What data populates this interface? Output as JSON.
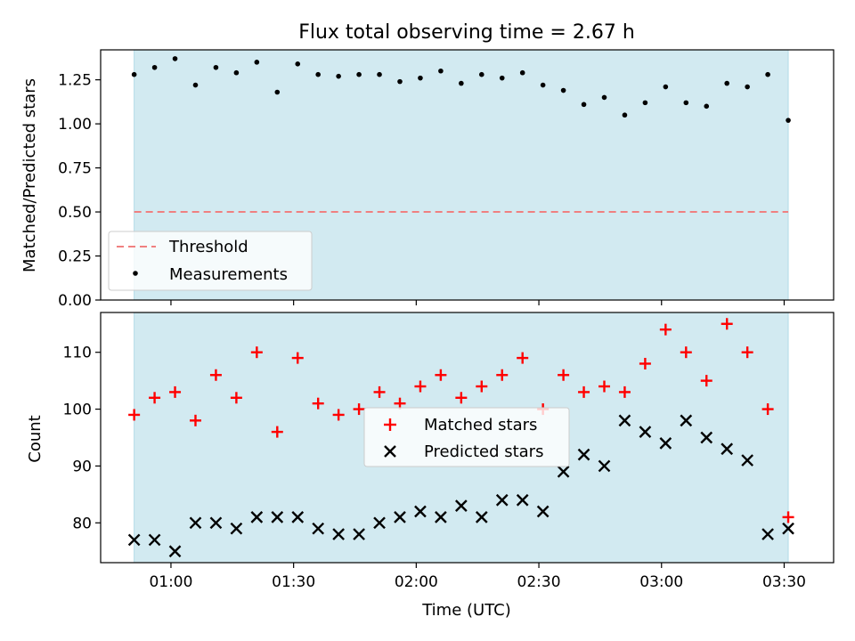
{
  "chart_data": [
    {
      "type": "scatter",
      "title": "Flux total observing time = 2.67 h",
      "xlabel": "",
      "ylabel": "Matched/Predicted stars",
      "ylim": [
        0,
        1.42
      ],
      "yticks": [
        "0.00",
        "0.25",
        "0.50",
        "0.75",
        "1.00",
        "1.25"
      ],
      "threshold": 0.5,
      "x": [
        "00:51",
        "00:56",
        "01:01",
        "01:06",
        "01:11",
        "01:16",
        "01:21",
        "01:26",
        "01:31",
        "01:36",
        "01:41",
        "01:46",
        "01:51",
        "01:56",
        "02:01",
        "02:06",
        "02:11",
        "02:16",
        "02:21",
        "02:26",
        "02:31",
        "02:36",
        "02:41",
        "02:46",
        "02:51",
        "02:56",
        "03:01",
        "03:06",
        "03:11",
        "03:16",
        "03:21",
        "03:26",
        "03:31"
      ],
      "series": [
        {
          "name": "Threshold",
          "color": "#f08080",
          "style": "dashed",
          "values": [
            0.5,
            0.5
          ]
        },
        {
          "name": "Measurements",
          "color": "#000000",
          "values": [
            1.28,
            1.32,
            1.37,
            1.22,
            1.32,
            1.29,
            1.35,
            1.18,
            1.34,
            1.28,
            1.27,
            1.28,
            1.28,
            1.24,
            1.26,
            1.3,
            1.23,
            1.28,
            1.26,
            1.29,
            1.22,
            1.19,
            1.11,
            1.15,
            1.05,
            1.12,
            1.21,
            1.12,
            1.1,
            1.23,
            1.21,
            1.28,
            1.02
          ]
        }
      ],
      "legend": "lower-left",
      "shade_color": "#add8e6"
    },
    {
      "type": "scatter",
      "title": "",
      "xlabel": "Time (UTC)",
      "ylabel": "Count",
      "ylim": [
        73,
        117
      ],
      "yticks": [
        "80",
        "90",
        "100",
        "110"
      ],
      "xticks": [
        "01:00",
        "01:30",
        "02:00",
        "02:30",
        "03:00",
        "03:30"
      ],
      "x": [
        "00:51",
        "00:56",
        "01:01",
        "01:06",
        "01:11",
        "01:16",
        "01:21",
        "01:26",
        "01:31",
        "01:36",
        "01:41",
        "01:46",
        "01:51",
        "01:56",
        "02:01",
        "02:06",
        "02:11",
        "02:16",
        "02:21",
        "02:26",
        "02:31",
        "02:36",
        "02:41",
        "02:46",
        "02:51",
        "02:56",
        "03:01",
        "03:06",
        "03:11",
        "03:16",
        "03:21",
        "03:26",
        "03:31"
      ],
      "series": [
        {
          "name": "Matched stars",
          "color": "#ff0000",
          "marker": "+",
          "values": [
            99,
            102,
            103,
            98,
            106,
            102,
            110,
            96,
            109,
            101,
            99,
            100,
            103,
            101,
            104,
            106,
            102,
            104,
            106,
            109,
            100,
            106,
            103,
            104,
            103,
            108,
            114,
            110,
            105,
            115,
            110,
            100,
            81
          ]
        },
        {
          "name": "Predicted stars",
          "color": "#000000",
          "marker": "x",
          "values": [
            77,
            77,
            75,
            80,
            80,
            79,
            81,
            81,
            81,
            79,
            78,
            78,
            80,
            81,
            82,
            81,
            83,
            81,
            84,
            84,
            82,
            89,
            92,
            90,
            98,
            96,
            94,
            98,
            95,
            93,
            91,
            78,
            79
          ]
        }
      ],
      "legend": "center",
      "shade_color": "#add8e6"
    }
  ]
}
